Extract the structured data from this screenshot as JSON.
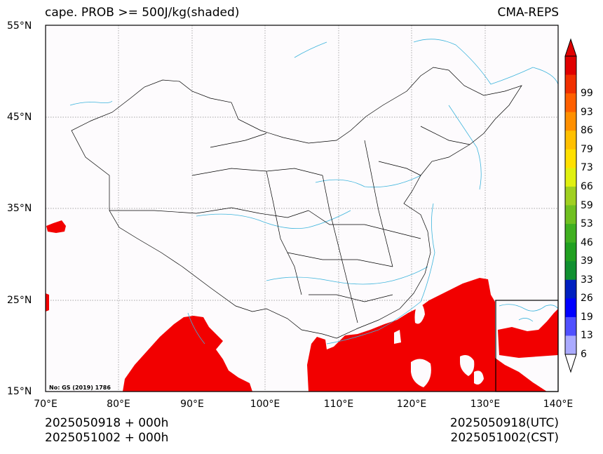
{
  "title": "cape. PROB >= 500J/kg(shaded)",
  "model": "CMA-REPS",
  "map_note": "No: GS (2019) 1786",
  "axes": {
    "lat_labels": [
      "55°N",
      "45°N",
      "35°N",
      "25°N",
      "15°N"
    ],
    "lon_labels": [
      "70°E",
      "80°E",
      "90°E",
      "100°E",
      "110°E",
      "120°E",
      "130°E",
      "140°E"
    ]
  },
  "colorbar": {
    "levels": [
      "6",
      "13",
      "19",
      "26",
      "33",
      "39",
      "46",
      "53",
      "59",
      "66",
      "73",
      "79",
      "86",
      "93",
      "99"
    ],
    "colors": [
      "#aaaaff",
      "#5050ff",
      "#0000ff",
      "#0020c0",
      "#109030",
      "#20a020",
      "#40b020",
      "#70c020",
      "#a0d020",
      "#e0f010",
      "#ffe000",
      "#ffc000",
      "#ff9000",
      "#ff6000",
      "#f03000",
      "#e00000"
    ]
  },
  "footer": {
    "init_utc": "2025050918  +  000h",
    "init_cst": "2025051002  +  000h",
    "valid_utc": "2025050918(UTC)",
    "valid_cst": "2025051002(CST)"
  },
  "colors": {
    "shade": "#f20000",
    "rivers": "#3cb4dc",
    "borders": "#000000",
    "grid": "#888888"
  }
}
